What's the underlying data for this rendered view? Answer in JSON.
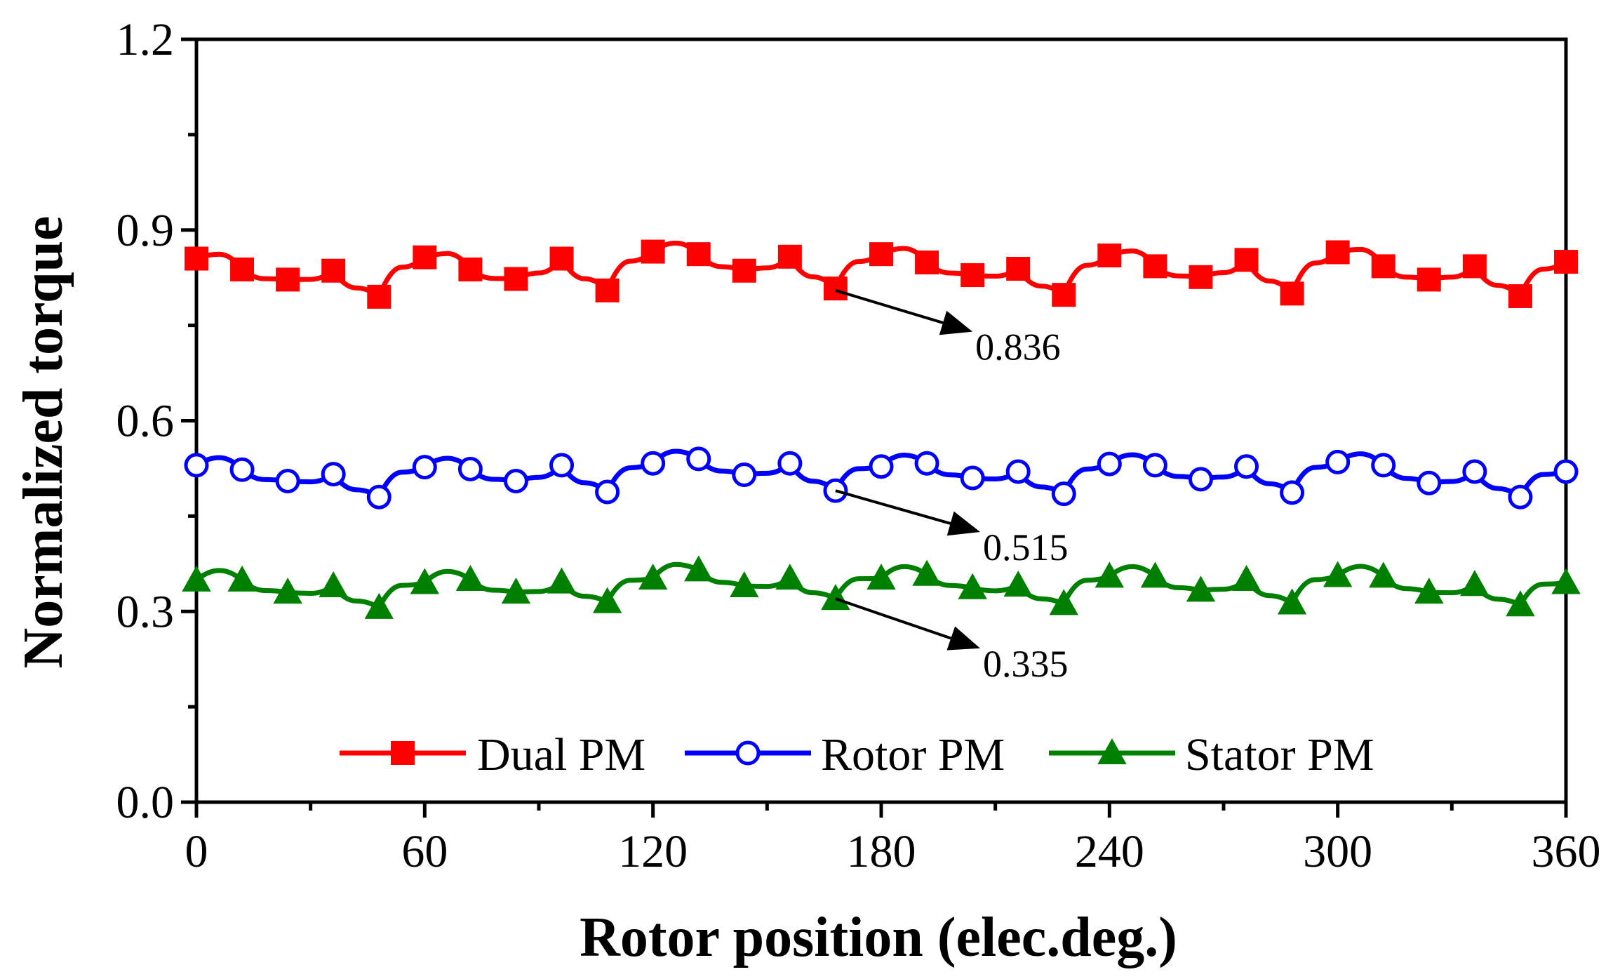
{
  "chart_data": {
    "type": "line",
    "title": "",
    "xlabel": "Rotor position (elec.deg.)",
    "ylabel": "Normalized torque",
    "xlim": [
      0,
      360
    ],
    "ylim": [
      0,
      1.2
    ],
    "xticks": [
      0,
      60,
      120,
      180,
      240,
      300,
      360
    ],
    "yticks": [
      0.0,
      0.3,
      0.6,
      0.9,
      1.2
    ],
    "xtick_labels": [
      "0",
      "60",
      "120",
      "180",
      "240",
      "300",
      "360"
    ],
    "ytick_labels": [
      "0.0",
      "0.3",
      "0.6",
      "0.9",
      "1.2"
    ],
    "x": [
      0,
      12,
      24,
      36,
      48,
      60,
      72,
      84,
      96,
      108,
      120,
      132,
      144,
      156,
      168,
      180,
      192,
      204,
      216,
      228,
      240,
      252,
      264,
      276,
      288,
      300,
      312,
      324,
      336,
      348,
      360
    ],
    "series": [
      {
        "name": "Dual PM",
        "color": "#ff0000",
        "marker": "square",
        "values": [
          0.855,
          0.838,
          0.822,
          0.836,
          0.795,
          0.857,
          0.838,
          0.823,
          0.855,
          0.805,
          0.866,
          0.862,
          0.836,
          0.858,
          0.808,
          0.862,
          0.849,
          0.829,
          0.839,
          0.798,
          0.86,
          0.843,
          0.826,
          0.853,
          0.8,
          0.865,
          0.843,
          0.822,
          0.843,
          0.796,
          0.85
        ],
        "mean_label": "0.836"
      },
      {
        "name": "Rotor PM",
        "color": "#0000ff",
        "marker": "circle",
        "values": [
          0.53,
          0.523,
          0.505,
          0.516,
          0.48,
          0.527,
          0.524,
          0.505,
          0.53,
          0.488,
          0.533,
          0.54,
          0.515,
          0.533,
          0.49,
          0.528,
          0.533,
          0.51,
          0.52,
          0.485,
          0.532,
          0.53,
          0.508,
          0.528,
          0.487,
          0.535,
          0.53,
          0.502,
          0.52,
          0.48,
          0.52
        ],
        "mean_label": "0.515"
      },
      {
        "name": "Stator PM",
        "color": "#008000",
        "marker": "triangle",
        "values": [
          0.349,
          0.349,
          0.33,
          0.34,
          0.306,
          0.345,
          0.35,
          0.33,
          0.346,
          0.315,
          0.352,
          0.365,
          0.34,
          0.352,
          0.32,
          0.352,
          0.358,
          0.337,
          0.341,
          0.312,
          0.355,
          0.355,
          0.333,
          0.35,
          0.313,
          0.356,
          0.355,
          0.33,
          0.342,
          0.31,
          0.345
        ],
        "mean_label": "0.335"
      }
    ],
    "annotations": [
      {
        "series": "Dual PM",
        "text": "0.836",
        "from_x": 168,
        "from_y": 0.805,
        "to_x": 204,
        "to_y": 0.74
      },
      {
        "series": "Rotor PM",
        "text": "0.515",
        "from_x": 168,
        "from_y": 0.49,
        "to_x": 206,
        "to_y": 0.425
      },
      {
        "series": "Stator PM",
        "text": "0.335",
        "from_x": 168,
        "from_y": 0.32,
        "to_x": 206,
        "to_y": 0.242
      }
    ],
    "legend": {
      "position": "bottom-center",
      "entries": [
        "Dual PM",
        "Rotor PM",
        "Stator PM"
      ]
    }
  }
}
